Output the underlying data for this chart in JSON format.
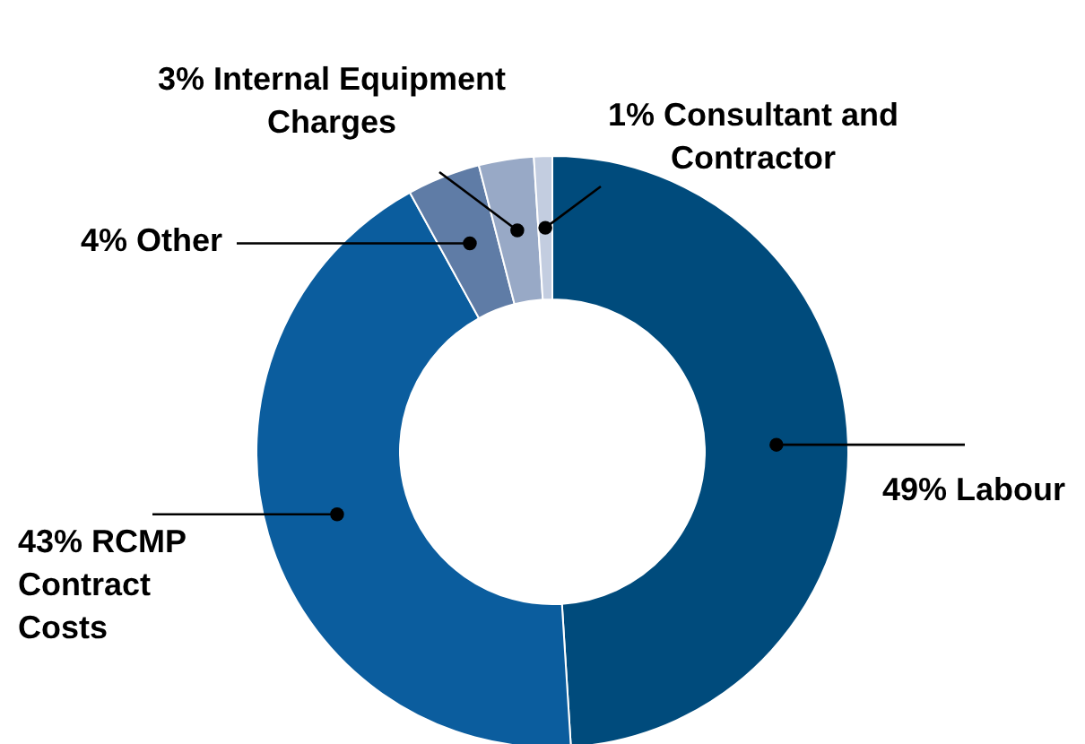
{
  "chart_data": {
    "type": "donut",
    "categories": [
      "Labour",
      "RCMP Contract Costs",
      "Other",
      "Internal Equipment Charges",
      "Consultant and Contractor"
    ],
    "values": [
      49,
      43,
      4,
      3,
      1
    ],
    "value_labels": [
      "49%",
      "43%",
      "4%",
      "3%",
      "1%"
    ],
    "colors": [
      "#004b7c",
      "#0b5d9e",
      "#5f7ca6",
      "#98a9c6",
      "#c3cde0"
    ]
  }
}
